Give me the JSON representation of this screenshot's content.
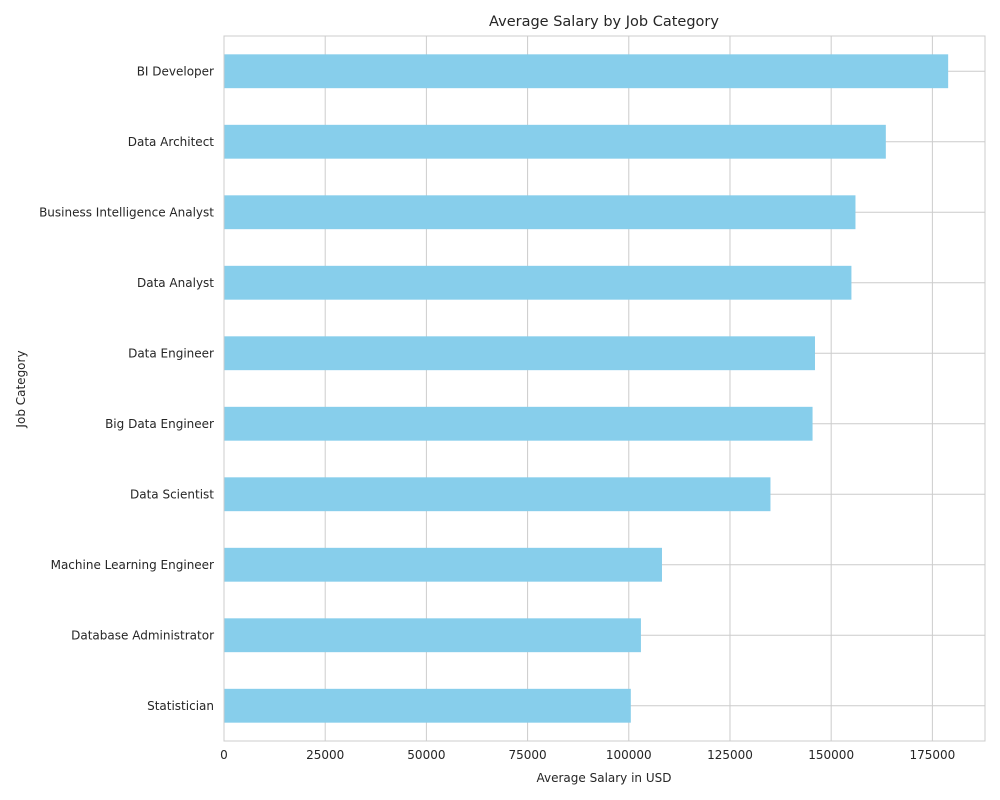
{
  "chart_data": {
    "type": "bar",
    "orientation": "horizontal",
    "title": "Average Salary by Job Category",
    "xlabel": "Average Salary in USD",
    "ylabel": "Job Category",
    "xlim": [
      0,
      188000
    ],
    "xticks": [
      0,
      25000,
      50000,
      75000,
      100000,
      125000,
      150000,
      175000
    ],
    "grid": true,
    "bar_color": "#87ceeb",
    "categories": [
      "BI Developer",
      "Data Architect",
      "Business Intelligence Analyst",
      "Data Analyst",
      "Data Engineer",
      "Big Data Engineer",
      "Data Scientist",
      "Machine Learning Engineer",
      "Database Administrator",
      "Statistician"
    ],
    "values": [
      178900,
      163500,
      156000,
      155000,
      146000,
      145400,
      135000,
      108200,
      103000,
      100500
    ]
  }
}
